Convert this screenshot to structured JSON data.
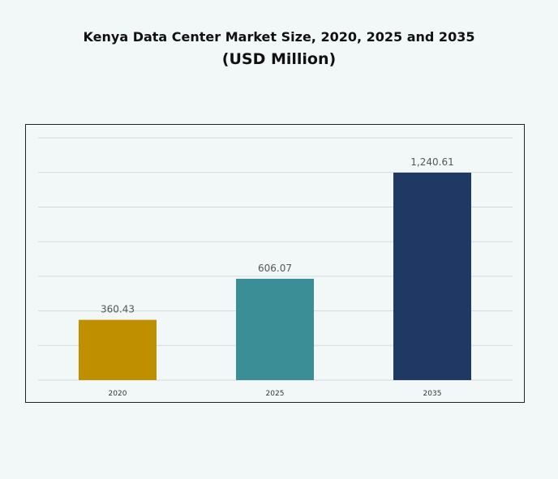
{
  "chart_data": {
    "type": "bar",
    "title": "Kenya Data Center Market Size, 2020, 2025 and 2035",
    "subtitle": "(USD Million)",
    "categories": [
      "2020",
      "2025",
      "2035"
    ],
    "values": [
      360.43,
      606.07,
      1240.61
    ],
    "value_labels": [
      "360.43",
      "606.07",
      "1,240.61"
    ],
    "colors": [
      "#bf8f00",
      "#3c8e96",
      "#203864"
    ],
    "grid": true,
    "legend": "none",
    "xlabel": "",
    "ylabel": ""
  }
}
